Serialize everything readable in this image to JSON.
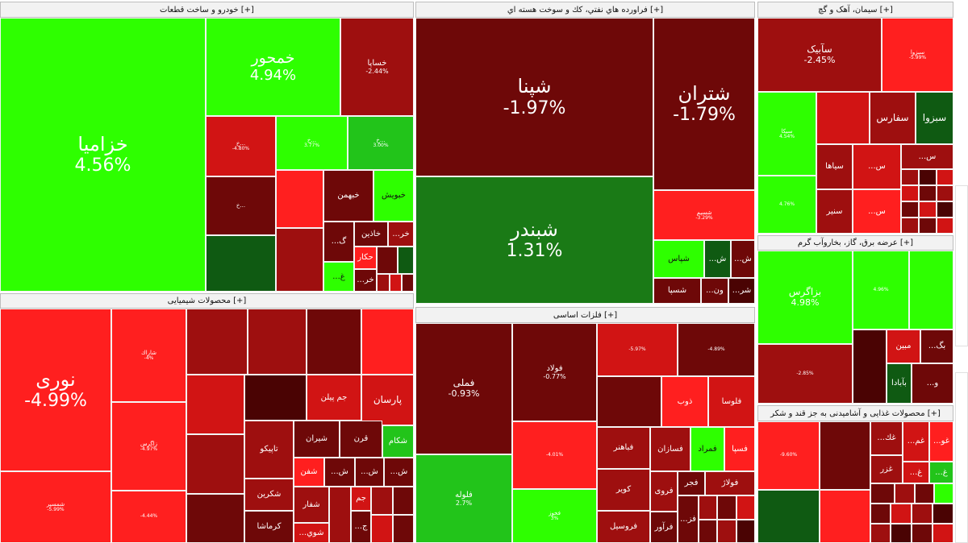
{
  "colors": {
    "g1": "#2eff00",
    "g2": "#22c41a",
    "g3": "#1a7a16",
    "g4": "#0f5a12",
    "r1": "#ff1f1f",
    "r2": "#d11414",
    "r3": "#9e0f0f",
    "r4": "#6e0808",
    "r5": "#4a0303"
  },
  "sectors": [
    {
      "key": "auto",
      "title": "خودرو و ساخت قطعات [+]"
    },
    {
      "key": "oil",
      "title": "فراورده هاي نفتي، كك و سوخت هسته اي [+]"
    },
    {
      "key": "cement",
      "title": "سیمان، آهک و گچ [+]"
    },
    {
      "key": "power",
      "title": "عرضه برق، گاز، بخاروآب گرم [+]"
    },
    {
      "key": "chem",
      "title": "محصولات شیمیایی [+]"
    },
    {
      "key": "metals",
      "title": "فلزات اساسی [+]"
    },
    {
      "key": "food",
      "title": "محصولات غذایی و آشامیدنی به جز قند و شکر [+]"
    }
  ],
  "tiles": [
    {
      "t": "خزامیا",
      "p": "4.56%",
      "c": "g1"
    },
    {
      "t": "خمحور",
      "p": "4.94%",
      "c": "g1"
    },
    {
      "t": "خساپا",
      "p": "-2.44%",
      "c": "r3"
    },
    {
      "t": "خ...",
      "p": "-4.80%",
      "c": "r2"
    },
    {
      "t": "خ...",
      "p": "3.77%",
      "c": "g1"
    },
    {
      "t": "خ...",
      "p": "3.00%",
      "c": "g2"
    },
    {
      "t": "خ...",
      "p": "",
      "c": "r4"
    },
    {
      "t": "",
      "p": "",
      "c": "r1"
    },
    {
      "t": "خبهمن",
      "p": "",
      "c": "r4"
    },
    {
      "t": "خبویش",
      "p": "",
      "c": "g1"
    },
    {
      "t": "",
      "p": "",
      "c": "g4"
    },
    {
      "t": "",
      "p": "",
      "c": "r3"
    },
    {
      "t": "خاذین",
      "p": "",
      "c": "r4"
    },
    {
      "t": "...خر",
      "p": "",
      "c": "r3"
    },
    {
      "t": "...گ",
      "p": "",
      "c": "r4"
    },
    {
      "t": "حکار",
      "p": "",
      "c": "r1"
    },
    {
      "t": "",
      "p": "",
      "c": "r4"
    },
    {
      "t": "",
      "p": "",
      "c": "g4"
    },
    {
      "t": "...غ",
      "p": "",
      "c": "g1"
    },
    {
      "t": "...خر",
      "p": "",
      "c": "r4"
    },
    {
      "t": "",
      "p": "",
      "c": "r3"
    },
    {
      "t": "",
      "p": "",
      "c": "r2"
    },
    {
      "t": "",
      "p": "",
      "c": "r4"
    },
    {
      "t": "شپنا",
      "p": "-1.97%",
      "c": "r4"
    },
    {
      "t": "شتران",
      "p": "-1.79%",
      "c": "r4"
    },
    {
      "t": "شبندر",
      "p": "1.31%",
      "c": "g3"
    },
    {
      "t": "شسپم",
      "p": "-3.29%",
      "c": "r1"
    },
    {
      "t": "شپاس",
      "p": "",
      "c": "g1"
    },
    {
      "t": "...ش",
      "p": "",
      "c": "g4"
    },
    {
      "t": "...ش",
      "p": "",
      "c": "r4"
    },
    {
      "t": "شسپا",
      "p": "",
      "c": "r4"
    },
    {
      "t": "...ون",
      "p": "",
      "c": "r4"
    },
    {
      "t": "...شر",
      "p": "",
      "c": "r5"
    },
    {
      "t": "سآبیک",
      "p": "-2.45%",
      "c": "r3"
    },
    {
      "t": "سبزوا",
      "p": "-5.99%",
      "c": "r1"
    },
    {
      "t": "سیکا",
      "p": "4.54%",
      "c": "g1"
    },
    {
      "t": "",
      "p": "",
      "c": "r2"
    },
    {
      "t": "سفارس",
      "p": "",
      "c": "r3"
    },
    {
      "t": "سبزوا",
      "p": "",
      "c": "g4"
    },
    {
      "t": "سیاها",
      "p": "",
      "c": "r3"
    },
    {
      "t": "...س",
      "p": "",
      "c": "r2"
    },
    {
      "t": "...س",
      "p": "",
      "c": "r3"
    },
    {
      "t": "",
      "p": "4.76%",
      "c": "g1"
    },
    {
      "t": "سنیر",
      "p": "",
      "c": "r3"
    },
    {
      "t": "...س",
      "p": "",
      "c": "r1"
    },
    {
      "t": "بزاگرس",
      "p": "4.98%",
      "c": "g1"
    },
    {
      "t": "",
      "p": "4.96%",
      "c": "g1"
    },
    {
      "t": "",
      "p": "",
      "c": "g1"
    },
    {
      "t": "",
      "p": "-2.85%",
      "c": "r3"
    },
    {
      "t": "",
      "p": "",
      "c": "r5"
    },
    {
      "t": "مبین",
      "p": "",
      "c": "r2"
    },
    {
      "t": "...بگ",
      "p": "",
      "c": "r4"
    },
    {
      "t": "...و",
      "p": "",
      "c": "r4"
    },
    {
      "t": "بآبادا",
      "p": "",
      "c": "g4"
    },
    {
      "t": "نوری",
      "p": "-4.99%",
      "c": "r1"
    },
    {
      "t": "شمسپر",
      "p": "-5.99%",
      "c": "r1"
    },
    {
      "t": "شاراك",
      "p": "-4%",
      "c": "r1"
    },
    {
      "t": "زاگرس",
      "p": "-4.97%",
      "c": "r1"
    },
    {
      "t": "",
      "p": "-4.44%",
      "c": "r1"
    },
    {
      "t": "",
      "p": "",
      "c": "r3"
    },
    {
      "t": "",
      "p": "",
      "c": "r3"
    },
    {
      "t": "",
      "p": "",
      "c": "r4"
    },
    {
      "t": "",
      "p": "",
      "c": "r1"
    },
    {
      "t": "",
      "p": "",
      "c": "r2"
    },
    {
      "t": "",
      "p": "",
      "c": "r5"
    },
    {
      "t": "جم پیلن",
      "p": "",
      "c": "r2"
    },
    {
      "t": "پارسان",
      "p": "",
      "c": "r2"
    },
    {
      "t": "تاپیکو",
      "p": "",
      "c": "r3"
    },
    {
      "t": "شیران",
      "p": "",
      "c": "r4"
    },
    {
      "t": "قرن",
      "p": "",
      "c": "r4"
    },
    {
      "t": "شکام",
      "p": "",
      "c": "g2"
    },
    {
      "t": "شکرین",
      "p": "",
      "c": "r3"
    },
    {
      "t": "کرماشا",
      "p": "",
      "c": "r4"
    },
    {
      "t": "شفن",
      "p": "",
      "c": "r1"
    },
    {
      "t": "...ش",
      "p": "",
      "c": "r4"
    },
    {
      "t": "...ش",
      "p": "",
      "c": "r4"
    },
    {
      "t": "...ش",
      "p": "",
      "c": "r4"
    },
    {
      "t": "شفار",
      "p": "",
      "c": "r3"
    },
    {
      "t": "...شوي",
      "p": "",
      "c": "r2"
    },
    {
      "t": "جم",
      "p": "",
      "c": "r2"
    },
    {
      "t": "...ج",
      "p": "",
      "c": "r4"
    },
    {
      "t": "",
      "p": "",
      "c": "r3"
    },
    {
      "t": "",
      "p": "",
      "c": "r4"
    },
    {
      "t": "فملی",
      "p": "-0.93%",
      "c": "r4"
    },
    {
      "t": "فلوله",
      "p": "2.7%",
      "c": "g2"
    },
    {
      "t": "فولاد",
      "p": "-0.77%",
      "c": "r4"
    },
    {
      "t": "",
      "p": "-4.01%",
      "c": "r1"
    },
    {
      "t": "فخوز",
      "p": "3%",
      "c": "g1"
    },
    {
      "t": "",
      "p": "-5.97%",
      "c": "r2"
    },
    {
      "t": "",
      "p": "-4.89%",
      "c": "r4"
    },
    {
      "t": "",
      "p": "",
      "c": "r4"
    },
    {
      "t": "ذوب",
      "p": "",
      "c": "r1"
    },
    {
      "t": "فلوسا",
      "p": "",
      "c": "r2"
    },
    {
      "t": "فباهنر",
      "p": "",
      "c": "r3"
    },
    {
      "t": "فسازان",
      "p": "",
      "c": "r3"
    },
    {
      "t": "فمراد",
      "p": "",
      "c": "g1"
    },
    {
      "t": "فسپا",
      "p": "",
      "c": "r1"
    },
    {
      "t": "کویر",
      "p": "",
      "c": "r3"
    },
    {
      "t": "فروی",
      "p": "",
      "c": "r3"
    },
    {
      "t": "فجر",
      "p": "",
      "c": "r4"
    },
    {
      "t": "فولاژ",
      "p": "",
      "c": "r3"
    },
    {
      "t": "فروسیل",
      "p": "",
      "c": "r3"
    },
    {
      "t": "فرآور",
      "p": "",
      "c": "r4"
    },
    {
      "t": "...فز",
      "p": "",
      "c": "r4"
    },
    {
      "t": "",
      "p": "-9.60%",
      "c": "r1"
    },
    {
      "t": "",
      "p": "",
      "c": "r4"
    },
    {
      "t": "",
      "p": "",
      "c": "g4"
    },
    {
      "t": "",
      "p": "",
      "c": "r1"
    },
    {
      "t": "...غك",
      "p": "",
      "c": "r3"
    },
    {
      "t": "...غم",
      "p": "",
      "c": "r2"
    },
    {
      "t": "...غو",
      "p": "",
      "c": "r1"
    },
    {
      "t": "غزر",
      "p": "",
      "c": "r3"
    },
    {
      "t": "...غ",
      "p": "",
      "c": "r2"
    },
    {
      "t": "...غ",
      "p": "",
      "c": "g2"
    },
    {
      "t": "",
      "p": "",
      "c": "r4"
    },
    {
      "t": "",
      "p": "",
      "c": "r3"
    },
    {
      "t": "",
      "p": "",
      "c": "r4"
    }
  ]
}
